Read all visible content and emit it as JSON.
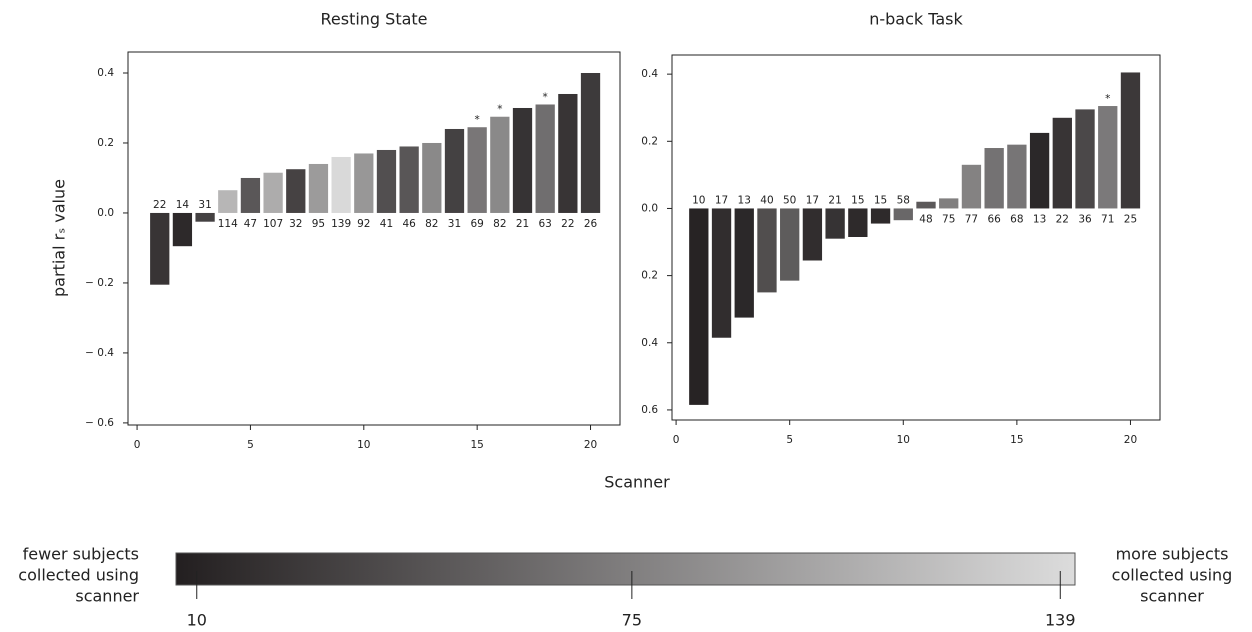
{
  "chart_data": [
    {
      "type": "bar",
      "title": "Resting State",
      "x": [
        1,
        2,
        3,
        4,
        5,
        6,
        7,
        8,
        9,
        10,
        11,
        12,
        13,
        14,
        15,
        16,
        17,
        18,
        19,
        20
      ],
      "values": [
        -0.205,
        -0.095,
        -0.025,
        0.065,
        0.1,
        0.115,
        0.125,
        0.14,
        0.16,
        0.17,
        0.18,
        0.19,
        0.2,
        0.24,
        0.245,
        0.275,
        0.3,
        0.31,
        0.34,
        0.4
      ],
      "counts": [
        22,
        14,
        31,
        114,
        47,
        107,
        32,
        95,
        139,
        92,
        41,
        46,
        82,
        31,
        69,
        82,
        21,
        63,
        22,
        26
      ],
      "annotations": [
        {
          "x": 15,
          "text": "*"
        },
        {
          "x": 16,
          "text": "*"
        },
        {
          "x": 18,
          "text": "*"
        }
      ],
      "xlim": [
        -0.4,
        21.3
      ],
      "xticks": [
        0,
        5,
        10,
        15,
        20
      ],
      "ylim": [
        -0.606,
        0.46
      ],
      "yticks": [
        0.4,
        0.2,
        {
          "value": 0,
          "label": "0.0"
        },
        {
          "value": -0.2,
          "label": "− 0.2"
        },
        {
          "value": -0.4,
          "label": "− 0.4"
        },
        {
          "value": -0.6,
          "label": "− 0.6"
        }
      ]
    },
    {
      "type": "bar",
      "title": "n-back Task",
      "x": [
        1,
        2,
        3,
        4,
        5,
        6,
        7,
        8,
        9,
        10,
        11,
        12,
        13,
        14,
        15,
        16,
        17,
        18,
        19,
        20
      ],
      "values": [
        -0.585,
        -0.385,
        -0.325,
        -0.25,
        -0.215,
        -0.155,
        -0.09,
        -0.085,
        -0.045,
        -0.035,
        0.02,
        0.03,
        0.13,
        0.18,
        0.19,
        0.225,
        0.27,
        0.295,
        0.305,
        0.405
      ],
      "counts": [
        10,
        17,
        13,
        40,
        50,
        17,
        21,
        15,
        15,
        58,
        48,
        75,
        77,
        66,
        68,
        13,
        22,
        36,
        71,
        25
      ],
      "annotations": [
        {
          "x": 19,
          "text": "*"
        }
      ],
      "xlim": [
        -0.18,
        21.3
      ],
      "xticks": [
        0,
        5,
        10,
        15,
        20
      ],
      "ylim": [
        -0.63,
        0.457
      ],
      "yticks": [
        0.4,
        0.2,
        {
          "value": 0,
          "label": "0.0"
        },
        {
          "value": -0.2,
          "label": "0.2"
        },
        {
          "value": -0.4,
          "label": "0.4"
        },
        {
          "value": -0.6,
          "label": "0.6"
        }
      ]
    },
    {
      "type": "colorbar",
      "clim": [
        6.9,
        141.2
      ],
      "colors": [
        "#231f20",
        "#dcdcdc"
      ],
      "ticks": [
        10,
        75,
        139
      ],
      "left_label": [
        "fewer subjects",
        "collected using",
        "scanner"
      ],
      "right_label": [
        "more subjects",
        "collected using",
        "scanner"
      ]
    }
  ],
  "xlabel": "Scanner",
  "ylabel": "partial rₛ value"
}
